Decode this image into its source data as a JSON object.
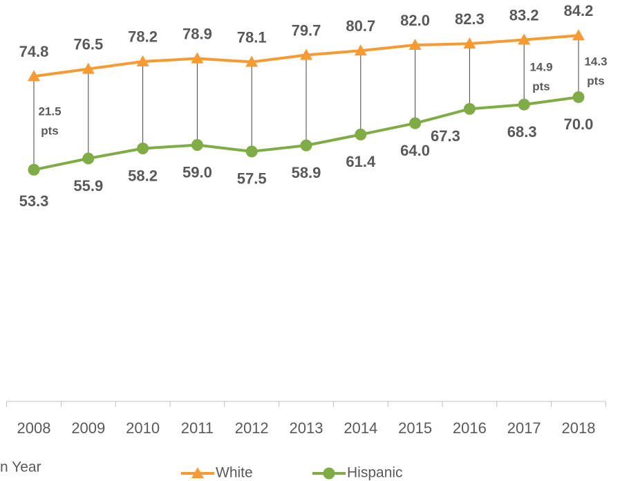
{
  "chart_data": {
    "type": "line",
    "categories": [
      "2008",
      "2009",
      "2010",
      "2011",
      "2012",
      "2013",
      "2014",
      "2015",
      "2016",
      "2017",
      "2018"
    ],
    "series": [
      {
        "name": "White",
        "color": "#f79a32",
        "marker": "triangle",
        "values": [
          74.8,
          76.5,
          78.2,
          78.9,
          78.1,
          79.7,
          80.7,
          82.0,
          82.3,
          83.2,
          84.2
        ],
        "value_labels": [
          "74.8",
          "76.5",
          "78.2",
          "78.9",
          "78.1",
          "79.7",
          "80.7",
          "82.0",
          "82.3",
          "83.2",
          "84.2"
        ]
      },
      {
        "name": "Hispanic",
        "color": "#7fac45",
        "marker": "circle",
        "values": [
          53.3,
          55.9,
          58.2,
          59.0,
          57.5,
          58.9,
          61.4,
          64.0,
          67.3,
          68.3,
          70.0
        ],
        "value_labels": [
          "53.3",
          "55.9",
          "58.2",
          "59.0",
          "57.5",
          "58.9",
          "61.4",
          "64.0",
          "67.3",
          "68.3",
          "70.0"
        ]
      }
    ],
    "annotations": [
      {
        "lines": [
          "21.5",
          "pts"
        ]
      },
      {
        "lines": [
          "14.9",
          "pts"
        ]
      },
      {
        "lines": [
          "14.3",
          "pts"
        ]
      }
    ],
    "x_label": "n Year",
    "ylim": [
      0,
      90
    ],
    "legend": "bottom"
  }
}
